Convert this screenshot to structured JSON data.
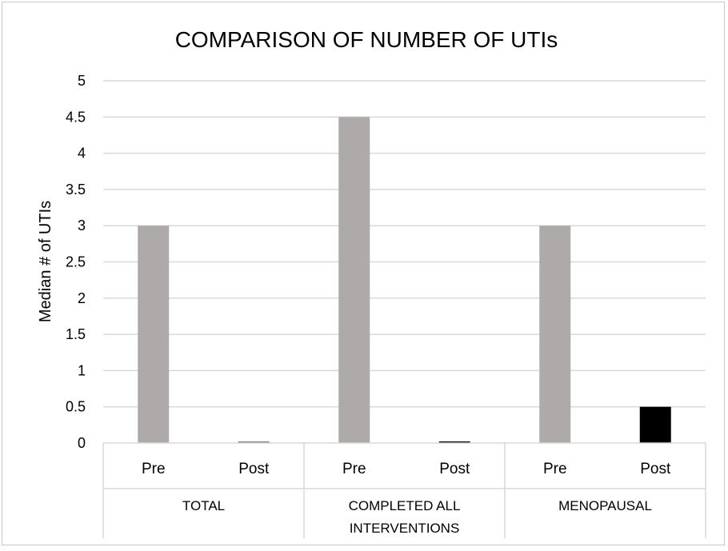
{
  "chart_data": {
    "type": "bar",
    "title": "COMPARISON OF NUMBER OF UTIs",
    "ylabel": "Median # of UTIs",
    "xlabel": "",
    "ylim": [
      0,
      5
    ],
    "y_ticks": [
      "0",
      "0.5",
      "1",
      "1.5",
      "2",
      "2.5",
      "3",
      "3.5",
      "4",
      "4.5",
      "5"
    ],
    "grid": true,
    "legend": "none",
    "groups": [
      {
        "label_lines": [
          "TOTAL"
        ],
        "bars": [
          {
            "label": "Pre",
            "value": 3,
            "color": "#aeaaaa"
          },
          {
            "label": "Post",
            "value": 0.02,
            "color": "#7f7f7f"
          }
        ]
      },
      {
        "label_lines": [
          "COMPLETED ALL",
          "INTERVENTIONS"
        ],
        "bars": [
          {
            "label": "Pre",
            "value": 4.5,
            "color": "#aeaaaa"
          },
          {
            "label": "Post",
            "value": 0.02,
            "color": "#000000"
          }
        ]
      },
      {
        "label_lines": [
          "MENOPAUSAL"
        ],
        "bars": [
          {
            "label": "Pre",
            "value": 3,
            "color": "#aeaaaa"
          },
          {
            "label": "Post",
            "value": 0.5,
            "color": "#000000"
          }
        ]
      }
    ]
  }
}
